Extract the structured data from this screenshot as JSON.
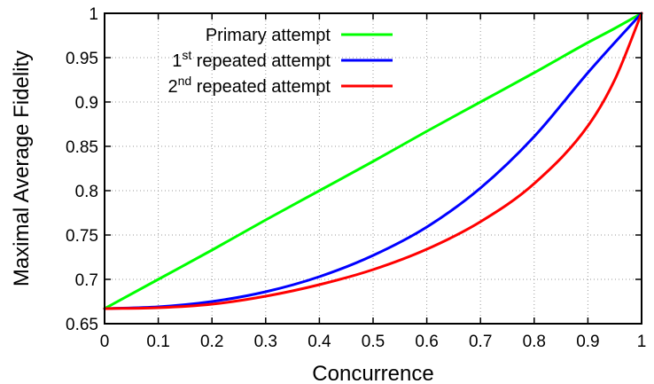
{
  "chart_data": {
    "type": "line",
    "title": "",
    "xlabel": "Concurrence",
    "ylabel": "Maximal Average Fidelity",
    "xlim": [
      0,
      1
    ],
    "ylim": [
      0.65,
      1
    ],
    "xticks": [
      "0",
      "0.1",
      "0.2",
      "0.3",
      "0.4",
      "0.5",
      "0.6",
      "0.7",
      "0.8",
      "0.9",
      "1"
    ],
    "yticks": [
      "0.65",
      "0.7",
      "0.75",
      "0.8",
      "0.85",
      "0.9",
      "0.95",
      "1"
    ],
    "grid": true,
    "legend_position": "top-right",
    "x": [
      0,
      0.1,
      0.2,
      0.3,
      0.4,
      0.5,
      0.6,
      0.7,
      0.8,
      0.9,
      0.95,
      1
    ],
    "series": [
      {
        "name": "Primary attempt",
        "color": "#00ff00",
        "values": [
          0.667,
          0.7,
          0.733,
          0.767,
          0.8,
          0.833,
          0.867,
          0.9,
          0.933,
          0.967,
          0.983,
          1.0
        ]
      },
      {
        "name_parts": [
          "1",
          "st",
          " repeated attempt"
        ],
        "color": "#0000ff",
        "values": [
          0.667,
          0.669,
          0.675,
          0.686,
          0.703,
          0.727,
          0.759,
          0.803,
          0.861,
          0.933,
          0.967,
          1.0
        ]
      },
      {
        "name_parts": [
          "2",
          "nd",
          " repeated attempt"
        ],
        "color": "#ff0000",
        "values": [
          0.667,
          0.668,
          0.672,
          0.681,
          0.694,
          0.711,
          0.734,
          0.765,
          0.808,
          0.873,
          0.925,
          1.0
        ]
      }
    ]
  }
}
